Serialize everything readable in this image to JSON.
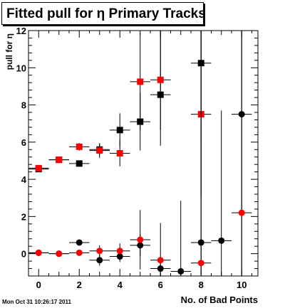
{
  "chart_data": {
    "type": "scatter",
    "title": "Fitted pull for  η Primary Tracks",
    "xlabel": "No. of Bad Points",
    "ylabel": "pull for η",
    "xlim": [
      -0.5,
      10.8
    ],
    "ylim": [
      -1.2,
      12.0
    ],
    "x_ticks": [
      0,
      2,
      4,
      6,
      8,
      10
    ],
    "y_ticks": [
      0,
      2,
      4,
      6,
      8,
      10,
      12
    ],
    "grid": false,
    "colors": {
      "black": "#000000",
      "red": "#ff0000"
    },
    "series": [
      {
        "color": "#000000",
        "marker": "square",
        "points": [
          {
            "x": 0,
            "y": 4.55,
            "yerr_lo": 0.1,
            "yerr_hi": 0.1
          },
          {
            "x": 1,
            "y": 5.05,
            "yerr_lo": 0.1,
            "yerr_hi": 0.1
          },
          {
            "x": 2,
            "y": 4.85,
            "yerr_lo": 0.15,
            "yerr_hi": 0.15
          },
          {
            "x": 3,
            "y": 5.6,
            "yerr_lo": 0.3,
            "yerr_hi": 0.3
          },
          {
            "x": 4,
            "y": 6.65,
            "yerr_lo": 0.9,
            "yerr_hi": 0.9
          },
          {
            "x": 5,
            "y": 7.1,
            "yerr_lo": 1.55,
            "yerr_hi": 1.55
          },
          {
            "x": 6,
            "y": 8.55,
            "yerr_lo": 2.75,
            "yerr_hi": 3.45
          },
          {
            "x": 8,
            "y": 10.25,
            "yerr_lo": 4.3,
            "yerr_hi": 1.75
          }
        ]
      },
      {
        "color": "#ff0000",
        "marker": "square",
        "points": [
          {
            "x": 0,
            "y": 4.6,
            "yerr_lo": 0.1,
            "yerr_hi": 0.1
          },
          {
            "x": 1,
            "y": 5.05,
            "yerr_lo": 0.1,
            "yerr_hi": 0.1
          },
          {
            "x": 2,
            "y": 5.75,
            "yerr_lo": 0.2,
            "yerr_hi": 0.2
          },
          {
            "x": 3,
            "y": 5.55,
            "yerr_lo": 0.4,
            "yerr_hi": 0.4
          },
          {
            "x": 4,
            "y": 5.4,
            "yerr_lo": 0.7,
            "yerr_hi": 0.7
          },
          {
            "x": 5,
            "y": 9.25,
            "yerr_lo": 2.6,
            "yerr_hi": 2.6
          },
          {
            "x": 6,
            "y": 9.35,
            "yerr_lo": 2.7,
            "yerr_hi": 2.65
          },
          {
            "x": 8,
            "y": 7.5,
            "yerr_lo": 4.5,
            "yerr_hi": 4.5
          }
        ]
      },
      {
        "color": "#000000",
        "marker": "circle",
        "points": [
          {
            "x": 0,
            "y": 0.05,
            "yerr_lo": 0.05,
            "yerr_hi": 0.05
          },
          {
            "x": 1,
            "y": 0.0,
            "yerr_lo": 0.05,
            "yerr_hi": 0.05
          },
          {
            "x": 2,
            "y": 0.6,
            "yerr_lo": 0.15,
            "yerr_hi": 0.15
          },
          {
            "x": 3,
            "y": -0.35,
            "yerr_lo": 0.3,
            "yerr_hi": 0.3
          },
          {
            "x": 4,
            "y": -0.15,
            "yerr_lo": 0.3,
            "yerr_hi": 0.3
          },
          {
            "x": 5,
            "y": 0.45,
            "yerr_lo": 0.6,
            "yerr_hi": 0.6
          },
          {
            "x": 6,
            "y": -0.8,
            "yerr_lo": 0.5,
            "yerr_hi": 0.5
          },
          {
            "x": 7,
            "y": -0.95,
            "yerr_lo": 0.3,
            "yerr_hi": 3.8
          },
          {
            "x": 8,
            "y": 0.6,
            "yerr_lo": 1.8,
            "yerr_hi": 11.4
          },
          {
            "x": 9,
            "y": 0.7,
            "yerr_lo": 1.9,
            "yerr_hi": 7.0
          },
          {
            "x": 10,
            "y": 7.5,
            "yerr_lo": 8.7,
            "yerr_hi": 4.5
          }
        ]
      },
      {
        "color": "#ff0000",
        "marker": "circle",
        "points": [
          {
            "x": 0,
            "y": 0.05,
            "yerr_lo": 0.05,
            "yerr_hi": 0.05
          },
          {
            "x": 1,
            "y": 0.0,
            "yerr_lo": 0.05,
            "yerr_hi": 0.05
          },
          {
            "x": 2,
            "y": 0.05,
            "yerr_lo": 0.1,
            "yerr_hi": 0.1
          },
          {
            "x": 3,
            "y": 0.15,
            "yerr_lo": 0.3,
            "yerr_hi": 0.3
          },
          {
            "x": 4,
            "y": 0.15,
            "yerr_lo": 0.4,
            "yerr_hi": 0.4
          },
          {
            "x": 5,
            "y": 0.75,
            "yerr_lo": 1.6,
            "yerr_hi": 1.6
          },
          {
            "x": 6,
            "y": -0.35,
            "yerr_lo": 2.0,
            "yerr_hi": 2.0
          },
          {
            "x": 8,
            "y": -0.5,
            "yerr_lo": 0.6,
            "yerr_hi": 7.5
          },
          {
            "x": 10,
            "y": 2.2,
            "yerr_lo": 3.4,
            "yerr_hi": 9.8
          }
        ]
      }
    ]
  },
  "title": "Fitted pull for  η Primary Tracks",
  "footer": "Mon Oct 31 10:26:17 2011"
}
